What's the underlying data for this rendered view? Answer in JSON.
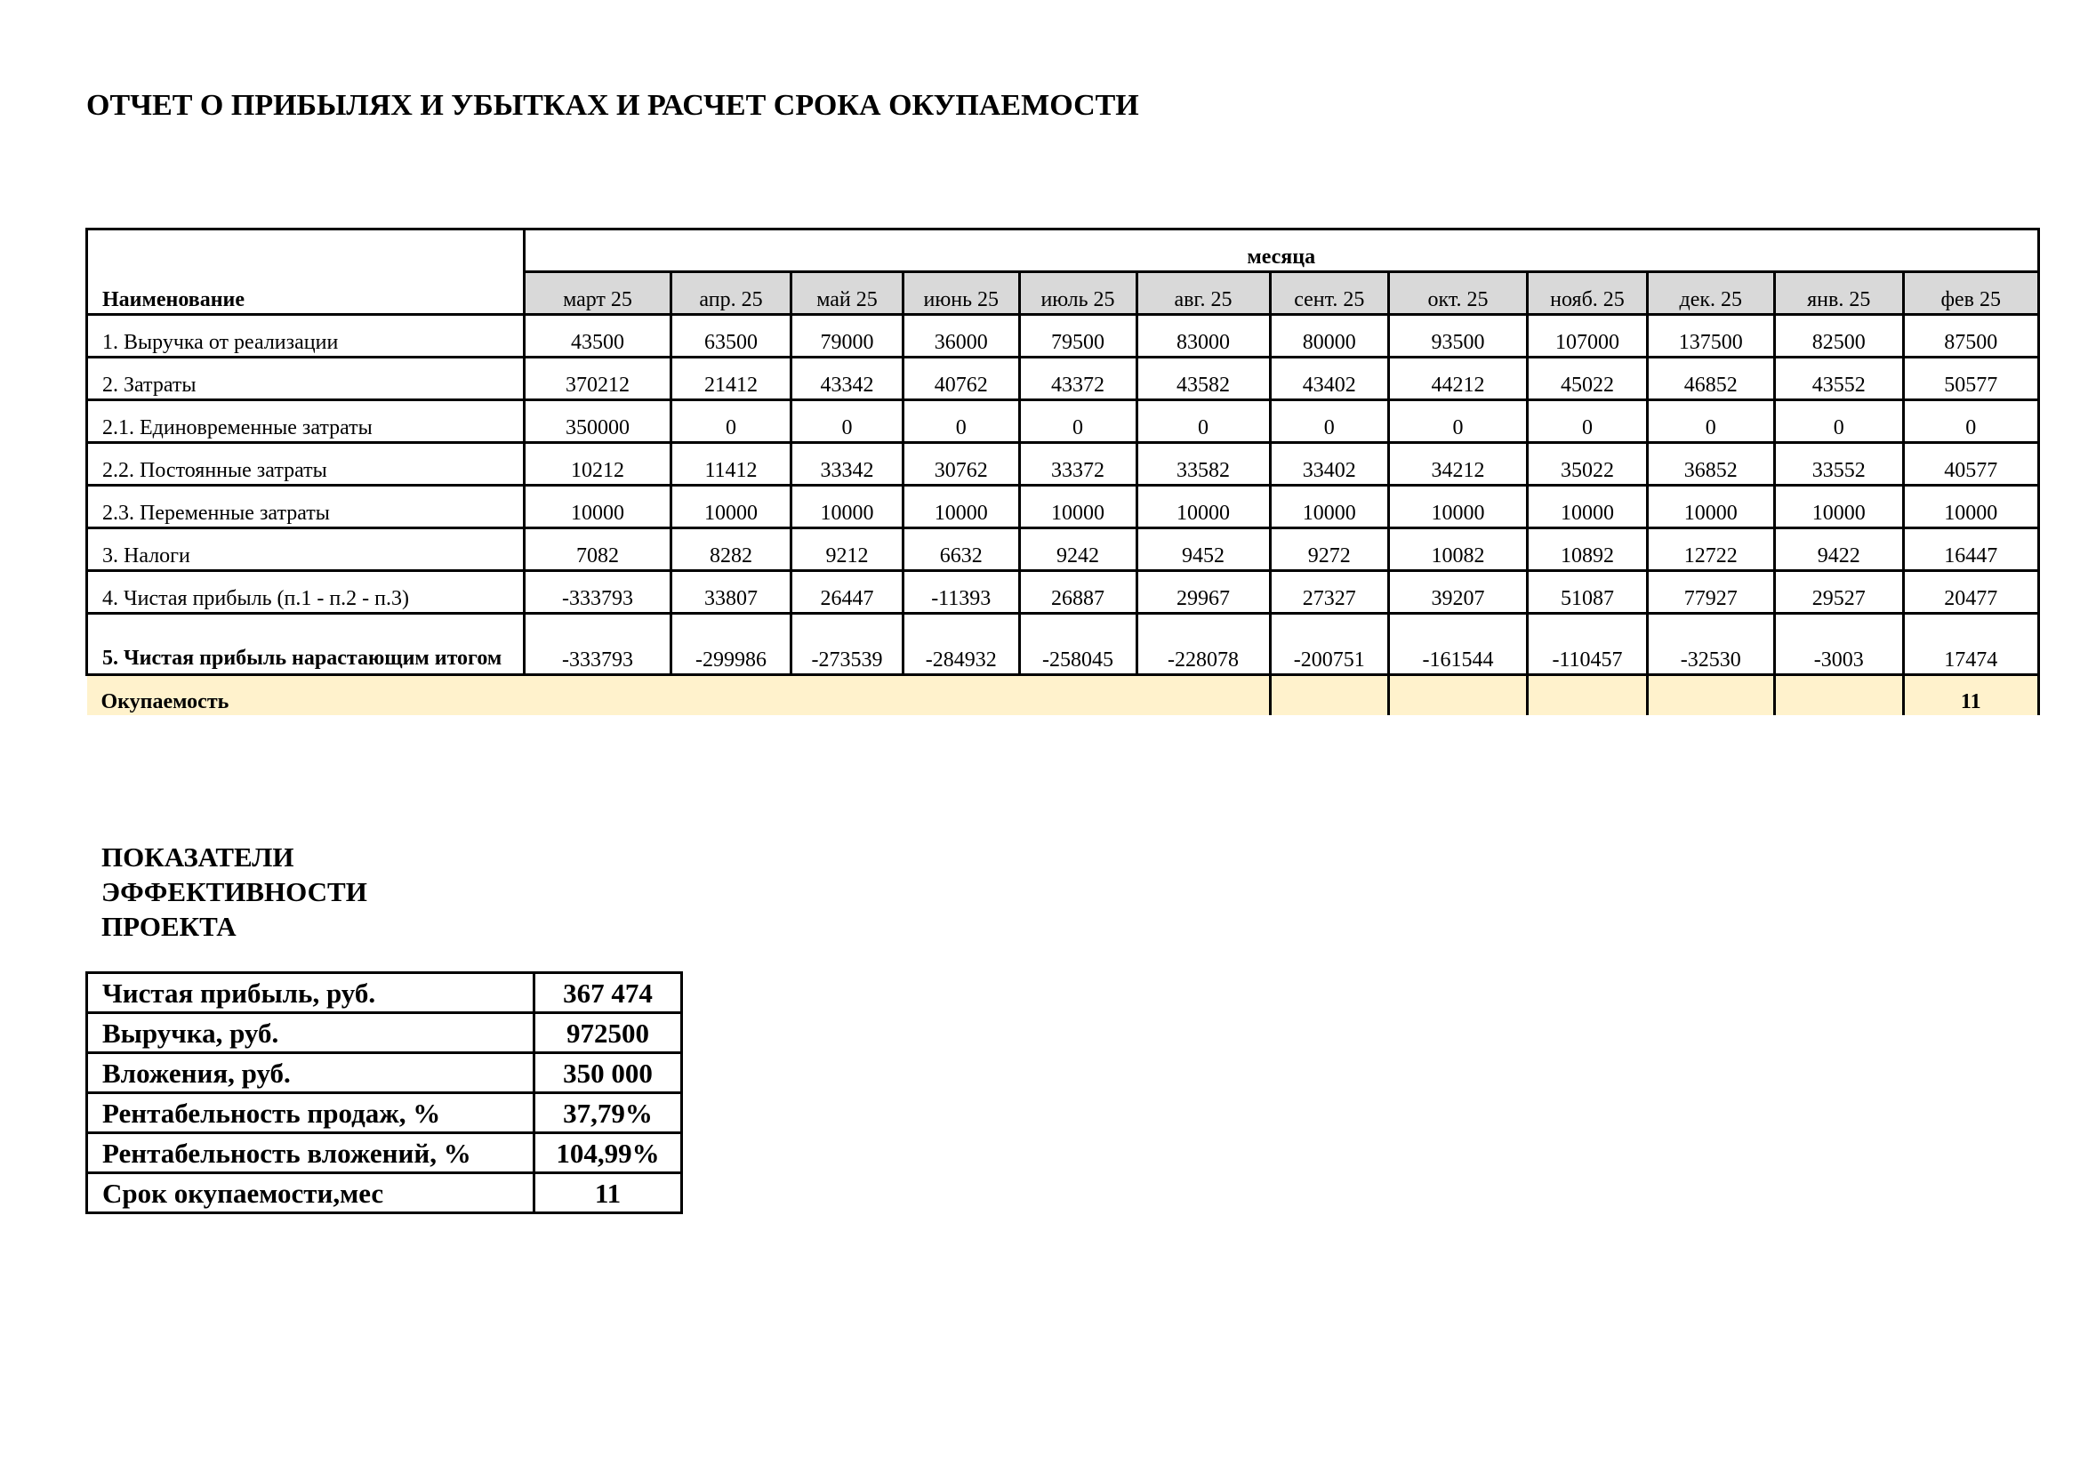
{
  "title": "ОТЧЕТ О ПРИБЫЛЯХ И УБЫТКАХ И РАСЧЕТ СРОКА ОКУПАЕМОСТИ",
  "table": {
    "name_header": "Наименование",
    "months_header": "месяца",
    "months": [
      "март 25",
      "апр. 25",
      "май 25",
      "июнь 25",
      "июль 25",
      "авг. 25",
      "сент. 25",
      "окт. 25",
      "нояб. 25",
      "дек. 25",
      "янв. 25",
      "фев 25"
    ],
    "rows": [
      {
        "label": "1. Выручка от реализации",
        "values": [
          43500,
          63500,
          79000,
          36000,
          79500,
          83000,
          80000,
          93500,
          107000,
          137500,
          82500,
          87500
        ]
      },
      {
        "label": "2. Затраты",
        "values": [
          370212,
          21412,
          43342,
          40762,
          43372,
          43582,
          43402,
          44212,
          45022,
          46852,
          43552,
          50577
        ]
      },
      {
        "label": "2.1. Единовременные затраты",
        "values": [
          350000,
          0,
          0,
          0,
          0,
          0,
          0,
          0,
          0,
          0,
          0,
          0
        ]
      },
      {
        "label": "2.2. Постоянные затраты",
        "values": [
          10212,
          11412,
          33342,
          30762,
          33372,
          33582,
          33402,
          34212,
          35022,
          36852,
          33552,
          40577
        ]
      },
      {
        "label": "2.3. Переменные затраты",
        "values": [
          10000,
          10000,
          10000,
          10000,
          10000,
          10000,
          10000,
          10000,
          10000,
          10000,
          10000,
          10000
        ]
      },
      {
        "label": "3. Налоги",
        "values": [
          7082,
          8282,
          9212,
          6632,
          9242,
          9452,
          9272,
          10082,
          10892,
          12722,
          9422,
          16447
        ]
      },
      {
        "label": "4. Чистая прибыль (п.1 - п.2 - п.3)",
        "values": [
          -333793,
          33807,
          26447,
          -11393,
          26887,
          29967,
          27327,
          39207,
          51087,
          77927,
          29527,
          20477
        ]
      },
      {
        "label": "5. Чистая прибыль нарастающим итогом",
        "values": [
          -333793,
          -299986,
          -273539,
          -284932,
          -258045,
          -228078,
          -200751,
          -161544,
          -110457,
          -32530,
          -3003,
          17474
        ]
      }
    ],
    "payback": {
      "label": "Окупаемость",
      "value": 11
    }
  },
  "indicators": {
    "title": "ПОКАЗАТЕЛИ ЭФФЕКТИВНОСТИ ПРОЕКТА",
    "rows": [
      [
        "Чистая прибыль, руб.",
        "367 474"
      ],
      [
        "Выручка, руб.",
        "972500"
      ],
      [
        "Вложения, руб.",
        "350 000"
      ],
      [
        "Рентабельность продаж, %",
        "37,79%"
      ],
      [
        "Рентабельность вложений, %",
        "104,99%"
      ],
      [
        "Срок окупаемости,мес",
        "11"
      ]
    ]
  }
}
